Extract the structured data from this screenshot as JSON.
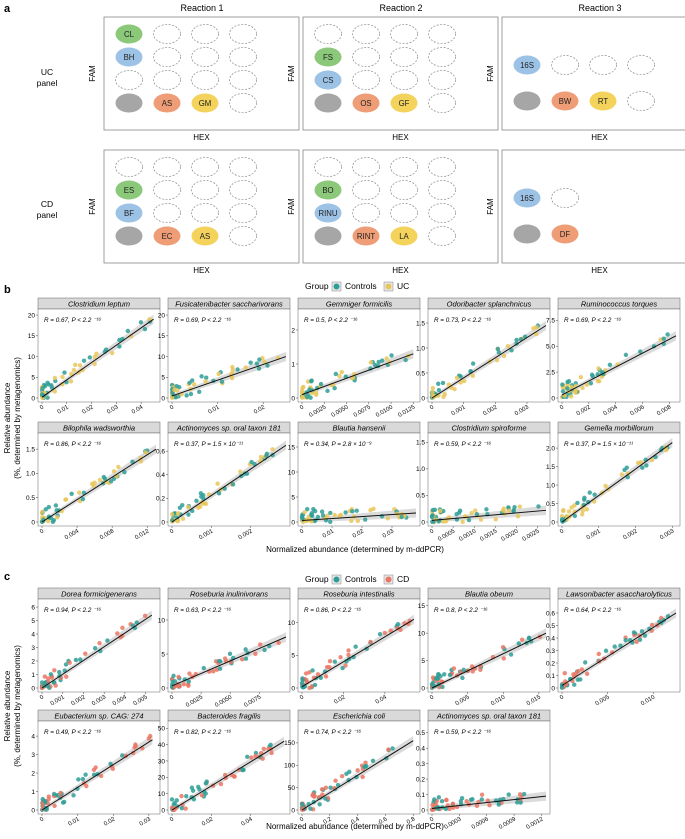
{
  "panel_letters": {
    "a": "a",
    "b": "b",
    "c": "c"
  },
  "colors": {
    "green": "#8cc87a",
    "blue": "#9cc2e6",
    "grey": "#a6a6a6",
    "orange": "#ef9d76",
    "yellow": "#f3d35c",
    "controls": "#2f9e98",
    "uc": "#e9c55b",
    "cd": "#ea7663",
    "grid_bg": "#ffffff",
    "strip_bg": "#d9d9d9"
  },
  "section_a": {
    "reactions": [
      "Reaction 1",
      "Reaction 2",
      "Reaction 3"
    ],
    "row_labels": [
      [
        "UC",
        "panel"
      ],
      [
        "CD",
        "panel"
      ]
    ],
    "axis_y": "FAM",
    "axis_x": "HEX",
    "grids": [
      {
        "rows": 4,
        "cols": 4,
        "cells": [
          [
            0,
            0,
            "green",
            "CL"
          ],
          [
            1,
            0,
            "blue",
            "BH"
          ],
          [
            3,
            0,
            "grey",
            ""
          ],
          [
            3,
            1,
            "orange",
            "AS"
          ],
          [
            3,
            2,
            "yellow",
            "GM"
          ]
        ]
      },
      {
        "rows": 4,
        "cols": 4,
        "cells": [
          [
            1,
            0,
            "green",
            "FS"
          ],
          [
            2,
            0,
            "blue",
            "CS"
          ],
          [
            3,
            0,
            "grey",
            ""
          ],
          [
            3,
            1,
            "orange",
            "OS"
          ],
          [
            3,
            2,
            "yellow",
            "GF"
          ]
        ]
      },
      {
        "rows": 2,
        "cols": 4,
        "cells": [
          [
            0,
            0,
            "blue",
            "16S"
          ],
          [
            1,
            0,
            "grey",
            ""
          ],
          [
            1,
            1,
            "orange",
            "BW"
          ],
          [
            1,
            2,
            "yellow",
            "RT"
          ]
        ]
      },
      {
        "rows": 4,
        "cols": 4,
        "cells": [
          [
            1,
            0,
            "green",
            "ES"
          ],
          [
            2,
            0,
            "blue",
            "BF"
          ],
          [
            3,
            0,
            "grey",
            ""
          ],
          [
            3,
            1,
            "orange",
            "EC"
          ],
          [
            3,
            2,
            "yellow",
            "AS"
          ]
        ]
      },
      {
        "rows": 4,
        "cols": 4,
        "cells": [
          [
            1,
            0,
            "green",
            "BO"
          ],
          [
            2,
            0,
            "blue",
            "RINU"
          ],
          [
            3,
            0,
            "grey",
            ""
          ],
          [
            3,
            1,
            "orange",
            "RINT"
          ],
          [
            3,
            2,
            "yellow",
            "LA"
          ]
        ]
      },
      {
        "rows": 2,
        "cols": 2,
        "cells": [
          [
            0,
            0,
            "blue",
            "16S"
          ],
          [
            1,
            0,
            "grey",
            ""
          ],
          [
            1,
            1,
            "orange",
            "DF"
          ]
        ]
      }
    ]
  },
  "section_b": {
    "legend_title": "Group",
    "legend_items": [
      "Controls",
      "UC"
    ],
    "ylabel": [
      "Relative abundance",
      "(%, determined by metagenomics)"
    ],
    "xlabel": "Normalized abundance (determined by m-ddPCR)",
    "panels": [
      {
        "title": "Clostridium leptum",
        "stat": "R = 0.67, P < 2.2 ⁻¹⁶",
        "xticks": [
          "0",
          "0.01",
          "0.02",
          "0.03",
          "0.04"
        ],
        "xmax": 0.046,
        "yticks": [
          "0",
          "5",
          "10",
          "15",
          "20"
        ],
        "ymax": 20.5,
        "line": [
          [
            0,
            0.2
          ],
          [
            0.045,
            19
          ]
        ]
      },
      {
        "title": "Fusicatenibacter saccharivorans",
        "stat": "R = 0.69, P < 2.2 ⁻¹⁶",
        "xticks": [
          "0",
          "0.01",
          "0.02"
        ],
        "xmax": 0.025,
        "yticks": [
          "0",
          "5",
          "10",
          "15",
          "20"
        ],
        "ymax": 20.5,
        "line": [
          [
            0,
            0.5
          ],
          [
            0.025,
            10
          ]
        ]
      },
      {
        "title": "Gemmiger formicilis",
        "stat": "R = 0.5, P < 2.2 ⁻¹⁶",
        "xticks": [
          "0",
          "0.0025",
          "0.0050",
          "0.0075",
          "0.0100",
          "0.0125"
        ],
        "xmax": 0.0128,
        "yticks": [
          "0",
          "1",
          "2"
        ],
        "ymax": 2.5,
        "line": [
          [
            0,
            0.1
          ],
          [
            0.0125,
            1.3
          ]
        ]
      },
      {
        "title": "Odoribacter splanchnicus",
        "stat": "R = 0.73, P < 2.2 ⁻¹⁶",
        "xticks": [
          "0",
          "0.001",
          "0.002",
          "0.003"
        ],
        "xmax": 0.0036,
        "yticks": [
          "0",
          "0.5",
          "1.0",
          "1.5"
        ],
        "ymax": 1.7,
        "line": [
          [
            0,
            0
          ],
          [
            0.0036,
            1.45
          ]
        ]
      },
      {
        "title": "Ruminococcus torques",
        "stat": "R = 0.69, P < 2.2 ⁻¹⁶",
        "xticks": [
          "0",
          "0.002",
          "0.004",
          "0.006",
          "0.008"
        ],
        "xmax": 0.0085,
        "yticks": [
          "0",
          "2.5",
          "5.0",
          "7.5"
        ],
        "ymax": 8.2,
        "line": [
          [
            0,
            0.3
          ],
          [
            0.0085,
            6
          ]
        ]
      },
      {
        "title": "Bilophila wadsworthia",
        "stat": "R = 0.86, P < 2.2 ⁻¹⁶",
        "xticks": [
          "0",
          "0.004",
          "0.008",
          "0.012"
        ],
        "xmax": 0.013,
        "yticks": [
          "0",
          "0.5",
          "1.0",
          "1.5"
        ],
        "ymax": 1.75,
        "line": [
          [
            0,
            0
          ],
          [
            0.013,
            1.5
          ]
        ]
      },
      {
        "title": "Actinomyces sp. oral taxon 181",
        "stat": "R = 0.37, P = 1.5 × 10⁻¹¹",
        "xticks": [
          "0",
          "0.001",
          "0.002"
        ],
        "xmax": 0.0029,
        "yticks": [
          "0",
          "0.2",
          "0.4",
          "0.6"
        ],
        "ymax": 0.72,
        "line": [
          [
            0,
            0
          ],
          [
            0.0029,
            0.65
          ]
        ]
      },
      {
        "title": "Blautia hansenii",
        "stat": "R = 0.34, P = 2.8 × 10⁻⁹",
        "xticks": [
          "0",
          "0.01",
          "0.02",
          "0.03"
        ],
        "xmax": 0.038,
        "yticks": [
          "0",
          "5",
          "10",
          "15"
        ],
        "ymax": 17,
        "line": [
          [
            0,
            0.3
          ],
          [
            0.038,
            1.8
          ]
        ]
      },
      {
        "title": "Clostridium spiroforme",
        "stat": "R = 0.59, P < 2.2 ⁻¹⁶",
        "xticks": [
          "0",
          "0.0005",
          "0.0010",
          "0.0015",
          "0.0020",
          "0.0025"
        ],
        "xmax": 0.0027,
        "yticks": [
          "0",
          "0.5",
          "1.0",
          "1.5"
        ],
        "ymax": 1.6,
        "line": [
          [
            0,
            0.03
          ],
          [
            0.0027,
            0.22
          ]
        ]
      },
      {
        "title": "Gemella morbillorum",
        "stat": "R = 0.37, P = 1.5 × 10⁻¹¹",
        "xticks": [
          "0",
          "0.001",
          "0.002",
          "0.003"
        ],
        "xmax": 0.0031,
        "yticks": [
          "0",
          "0.5",
          "1.0",
          "1.5",
          "2.0"
        ],
        "ymax": 2.3,
        "line": [
          [
            0,
            0
          ],
          [
            0.003,
            2.15
          ]
        ]
      }
    ]
  },
  "section_c": {
    "legend_title": "Group",
    "legend_items": [
      "Controls",
      "CD"
    ],
    "ylabel": [
      "Relative abundance",
      "(%, determined by metagenomics)"
    ],
    "xlabel": "Normalized abundance (determined by m-ddPCR)",
    "panels": [
      {
        "title": "Dorea formicigenerans",
        "stat": "R = 0.94, P < 2.2 ⁻¹⁶",
        "xticks": [
          "0",
          "0.001",
          "0.002",
          "0.003",
          "0.004",
          "0.005"
        ],
        "xmax": 0.0055,
        "yticks": [
          "0",
          "1",
          "2",
          "3",
          "4",
          "5",
          "6"
        ],
        "ymax": 6.3,
        "line": [
          [
            0,
            0
          ],
          [
            0.0053,
            5.4
          ]
        ]
      },
      {
        "title": "Roseburia inulinivorans",
        "stat": "R = 0.63, P < 2.2 ⁻¹⁶",
        "xticks": [
          "0",
          "0.0025",
          "0.0050",
          "0.0075"
        ],
        "xmax": 0.0098,
        "yticks": [
          "0",
          "5",
          "10"
        ],
        "ymax": 12.5,
        "line": [
          [
            0,
            0.3
          ],
          [
            0.0098,
            7.5
          ]
        ]
      },
      {
        "title": "Roseburia intestinalis",
        "stat": "R = 0.86, P < 2.2 ⁻¹⁶",
        "xticks": [
          "0",
          "0.02",
          "0.04"
        ],
        "xmax": 0.055,
        "yticks": [
          "0",
          "5",
          "10"
        ],
        "ymax": 13,
        "line": [
          [
            0,
            0.2
          ],
          [
            0.054,
            10.5
          ]
        ]
      },
      {
        "title": "Blautia obeum",
        "stat": "R = 0.8, P < 2.2 ⁻¹⁶",
        "xticks": [
          "0",
          "0.005",
          "0.010",
          "0.015"
        ],
        "xmax": 0.016,
        "yticks": [
          "0",
          "5",
          "10",
          "15"
        ],
        "ymax": 15.5,
        "line": [
          [
            0,
            0
          ],
          [
            0.016,
            10
          ]
        ]
      },
      {
        "title": "Lawsonibacter asaccharolyticus",
        "stat": "R = 0.64, P < 2.2 ⁻¹⁶",
        "xticks": [
          "0",
          "0.005",
          "0.010"
        ],
        "xmax": 0.0125,
        "yticks": [
          "0",
          "0.1",
          "0.2",
          "0.3",
          "0.4",
          "0.5",
          "0.6"
        ],
        "ymax": 0.68,
        "line": [
          [
            0,
            0.02
          ],
          [
            0.0125,
            0.6
          ]
        ]
      },
      {
        "title": "Eubacterium sp. CAG: 274",
        "stat": "R = 0.49, P < 2.2 ⁻¹⁶",
        "xticks": [
          "0",
          "0.01",
          "0.02",
          "0.03"
        ],
        "xmax": 0.032,
        "yticks": [
          "0",
          "1",
          "2",
          "3",
          "4"
        ],
        "ymax": 4.6,
        "line": [
          [
            0,
            0
          ],
          [
            0.031,
            3.8
          ]
        ]
      },
      {
        "title": "Bacteroides fragilis",
        "stat": "R = 0.82, P < 2.2 ⁻¹⁶",
        "xticks": [
          "0",
          "0.02",
          "0.04"
        ],
        "xmax": 0.058,
        "yticks": [
          "0",
          "10",
          "20",
          "30",
          "40",
          "50"
        ],
        "ymax": 52,
        "line": [
          [
            0,
            0
          ],
          [
            0.057,
            42
          ]
        ]
      },
      {
        "title": "Escherichia coli",
        "stat": "R = 0.74, P < 2.2 ⁻¹⁶",
        "xticks": [
          "0",
          "0.2",
          "0.4",
          "0.6",
          "0.8"
        ],
        "xmax": 0.82,
        "yticks": [
          "0",
          "50",
          "100",
          "150"
        ],
        "ymax": 190,
        "line": [
          [
            0,
            0
          ],
          [
            0.8,
            155
          ]
        ]
      },
      {
        "title": "Actinomyces sp. oral taxon 181",
        "stat": "R = 0.59, P < 2.2 ⁻¹⁶",
        "xticks": [
          "0",
          "0.0003",
          "0.0006",
          "0.0009",
          "0.0012"
        ],
        "xmax": 0.00125,
        "yticks": [
          "0",
          "0.1",
          "0.2",
          "0.3",
          "0.4",
          "0.5"
        ],
        "ymax": 0.55,
        "line": [
          [
            0,
            0.01
          ],
          [
            0.00125,
            0.09
          ]
        ]
      }
    ]
  }
}
